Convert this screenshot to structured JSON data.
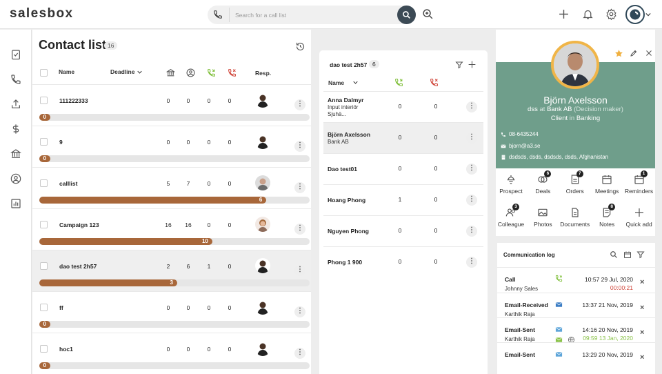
{
  "app": {
    "logo": "salesbox"
  },
  "search": {
    "placeholder": "Search for a call list"
  },
  "contact_lists": {
    "title": "Contact lists",
    "count": "16",
    "headers": {
      "name": "Name",
      "deadline": "Deadline",
      "resp": "Resp."
    },
    "rows": [
      {
        "name": "111222333",
        "c1": "0",
        "c2": "0",
        "c3": "0",
        "c4": "0",
        "progress": "0",
        "pct": 0
      },
      {
        "name": "9",
        "c1": "0",
        "c2": "0",
        "c3": "0",
        "c4": "0",
        "progress": "0",
        "pct": 0
      },
      {
        "name": "calllist",
        "c1": "5",
        "c2": "7",
        "c3": "0",
        "c4": "0",
        "progress": "6",
        "pct": 84
      },
      {
        "name": "Campaign 123",
        "c1": "16",
        "c2": "16",
        "c3": "0",
        "c4": "0",
        "progress": "10",
        "pct": 64
      },
      {
        "name": "dao test 2h57",
        "c1": "2",
        "c2": "6",
        "c3": "1",
        "c4": "0",
        "progress": "3",
        "pct": 51
      },
      {
        "name": "ff",
        "c1": "0",
        "c2": "0",
        "c3": "0",
        "c4": "0",
        "progress": "0",
        "pct": 0
      },
      {
        "name": "hoc1",
        "c1": "0",
        "c2": "0",
        "c3": "0",
        "c4": "0",
        "progress": "0",
        "pct": 0
      }
    ]
  },
  "detail": {
    "title": "dao test 2h57",
    "count": "6",
    "name_header": "Name",
    "rows": [
      {
        "name": "Anna Dalmyr",
        "sub1": "Input interiör",
        "sub2": "Sjuhä...",
        "c1": "0",
        "c2": "0"
      },
      {
        "name": "Björn Axelsson",
        "sub1": "Bank AB",
        "sub2": "",
        "c1": "0",
        "c2": "0"
      },
      {
        "name": "Dao test01",
        "sub1": "",
        "sub2": "",
        "c1": "0",
        "c2": "0"
      },
      {
        "name": "Hoang Phong",
        "sub1": "",
        "sub2": "",
        "c1": "1",
        "c2": "0"
      },
      {
        "name": "Nguyen Phong",
        "sub1": "",
        "sub2": "",
        "c1": "0",
        "c2": "0"
      },
      {
        "name": "Phong 1 900",
        "sub1": "",
        "sub2": "",
        "c1": "0",
        "c2": "0"
      }
    ]
  },
  "person": {
    "name": "Björn Axelsson",
    "role": "dss",
    "at": "at",
    "company": "Bank AB",
    "relation": "(Decision maker)",
    "type": "Client",
    "in": "in",
    "industry": "Banking",
    "phone": "08-6435244",
    "email": "bjorn@a3.se",
    "address": "dsdsds, dsds, dsdsds, dsds, Afghanistan",
    "actions": [
      {
        "label": "Prospect",
        "badge": ""
      },
      {
        "label": "Deals",
        "badge": "6"
      },
      {
        "label": "Orders",
        "badge": "7"
      },
      {
        "label": "Meetings",
        "badge": ""
      },
      {
        "label": "Reminders",
        "badge": "1"
      },
      {
        "label": "Colleague",
        "badge": "3"
      },
      {
        "label": "Photos",
        "badge": ""
      },
      {
        "label": "Documents",
        "badge": ""
      },
      {
        "label": "Notes",
        "badge": "8"
      },
      {
        "label": "Quick add",
        "badge": ""
      }
    ]
  },
  "comm": {
    "title": "Communication log",
    "rows": [
      {
        "type": "Call",
        "user": "Johnny Sales",
        "date": "10:57 29 Jul, 2020",
        "extra": "00:00:21"
      },
      {
        "type": "Email-Received",
        "user": "Karthik Raja",
        "date": "13:37 21 Nov, 2019",
        "extra": ""
      },
      {
        "type": "Email-Sent",
        "user": "Karthik Raja",
        "date": "14:16 20 Nov, 2019",
        "extra": "09:59 13 Jan, 2020"
      },
      {
        "type": "Email-Sent",
        "user": "",
        "date": "13:29 20 Nov, 2019",
        "extra": ""
      }
    ]
  },
  "colors": {
    "accent_green": "#6f9e8b",
    "progress": "#a8673a",
    "call_green": "#7fbf3a",
    "call_red": "#d0463a",
    "star": "#f0b040"
  }
}
